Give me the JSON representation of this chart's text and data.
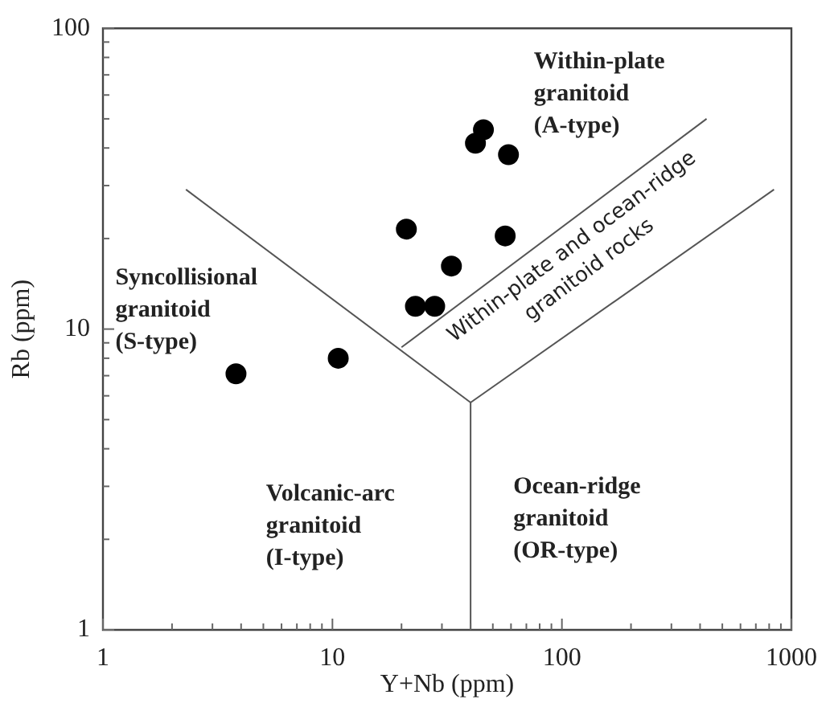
{
  "chart_data": {
    "type": "scatter",
    "xlabel": "Y+Nb (ppm)",
    "ylabel": "Rb (ppm)",
    "log": "xy",
    "legend": false,
    "marker": "circle",
    "xlim": [
      1,
      1000
    ],
    "ylim": [
      1,
      100
    ],
    "xticks": [
      1,
      {
        "value": 2,
        "label": null
      },
      {
        "value": 3,
        "label": null
      },
      {
        "value": 4,
        "label": null
      },
      {
        "value": 5,
        "label": null
      },
      {
        "value": 6,
        "label": null
      },
      {
        "value": 7,
        "label": null
      },
      {
        "value": 8,
        "label": null
      },
      {
        "value": 9,
        "label": null
      },
      10,
      {
        "value": 20,
        "label": null
      },
      {
        "value": 30,
        "label": null
      },
      {
        "value": 40,
        "label": null
      },
      {
        "value": 50,
        "label": null
      },
      {
        "value": 60,
        "label": null
      },
      {
        "value": 70,
        "label": null
      },
      {
        "value": 80,
        "label": null
      },
      {
        "value": 90,
        "label": null
      },
      100,
      {
        "value": 200,
        "label": null
      },
      {
        "value": 300,
        "label": null
      },
      {
        "value": 400,
        "label": null
      },
      {
        "value": 500,
        "label": null
      },
      {
        "value": 600,
        "label": null
      },
      {
        "value": 700,
        "label": null
      },
      {
        "value": 800,
        "label": null
      },
      {
        "value": 900,
        "label": null
      },
      1000
    ],
    "yticks": [
      1,
      {
        "value": 2,
        "label": null
      },
      {
        "value": 3,
        "label": null
      },
      {
        "value": 4,
        "label": null
      },
      {
        "value": 5,
        "label": null
      },
      {
        "value": 6,
        "label": null
      },
      {
        "value": 7,
        "label": null
      },
      {
        "value": 8,
        "label": null
      },
      {
        "value": 9,
        "label": null
      },
      10,
      {
        "value": 20,
        "label": null
      },
      {
        "value": 30,
        "label": null
      },
      {
        "value": 40,
        "label": null
      },
      {
        "value": 50,
        "label": null
      },
      {
        "value": 60,
        "label": null
      },
      {
        "value": 70,
        "label": null
      },
      {
        "value": 80,
        "label": null
      },
      {
        "value": 90,
        "label": null
      },
      100
    ],
    "series": [
      {
        "type": "scatter",
        "color": "#000000",
        "x": [
          45.5,
          42,
          58.5,
          21,
          56.6,
          33,
          23,
          27.9,
          3.8,
          10.6
        ],
        "values": [
          46,
          41.5,
          38,
          21.5,
          20.4,
          16.2,
          11.9,
          11.9,
          7.1,
          8.0
        ]
      },
      {
        "type": "line",
        "color": "#555555",
        "marker": "none",
        "x": [
          2.3,
          40
        ],
        "values": [
          29.1,
          5.7
        ]
      },
      {
        "type": "line",
        "color": "#555555",
        "marker": "none",
        "x": [
          40,
          40
        ],
        "values": [
          5.7,
          1
        ]
      },
      {
        "type": "line",
        "color": "#555555",
        "marker": "none",
        "x": [
          40,
          840
        ],
        "values": [
          5.7,
          29.1
        ]
      },
      {
        "type": "line",
        "color": "#555555",
        "marker": "none",
        "x": [
          20,
          427
        ],
        "values": [
          8.7,
          50
        ]
      }
    ],
    "annotations": [
      "Within-plate\ngranitoid\n(A-type)",
      "Syncollisional\ngranitoid\n(S-type)",
      "Volcanic-arc\ngranitoid\n(I-type)",
      "Ocean-ridge\ngranitoid\n(OR-type)",
      "Within-plate and ocean-ridge\ngranitoid rocks"
    ]
  }
}
